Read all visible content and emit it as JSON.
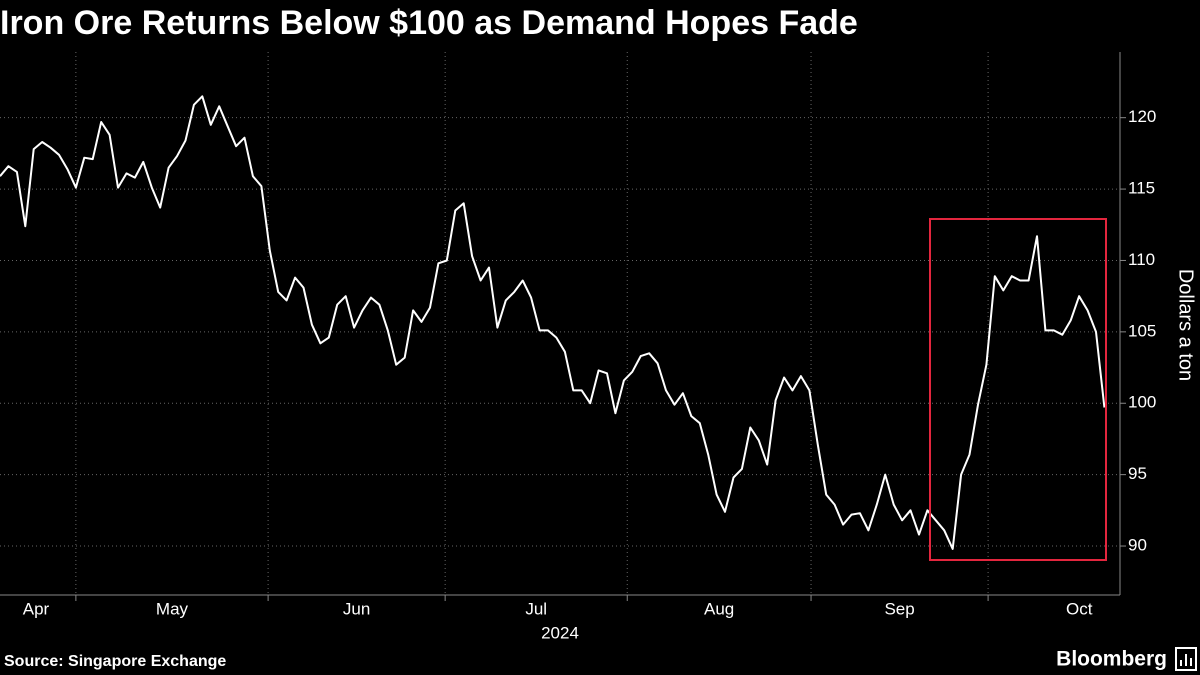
{
  "chart_data": {
    "type": "line",
    "title": "Iron Ore Returns Below $100 as Demand Hopes Fade",
    "y_label": "Dollars a ton",
    "x_sublabel": "2024",
    "source": "Source: Singapore Exchange",
    "brand": "Bloomberg",
    "series": [
      {
        "name": "Iron ore",
        "color": "#ffffff",
        "values": [
          115.9,
          116.6,
          116.2,
          112.4,
          117.8,
          118.3,
          117.9,
          117.4,
          116.4,
          115.1,
          117.2,
          117.1,
          119.7,
          118.8,
          115.1,
          116.1,
          115.8,
          116.9,
          115.1,
          113.7,
          116.5,
          117.3,
          118.4,
          120.9,
          121.5,
          119.5,
          120.8,
          119.4,
          118.0,
          118.6,
          115.9,
          115.2,
          110.7,
          107.8,
          107.2,
          108.8,
          108.1,
          105.5,
          104.2,
          104.6,
          106.9,
          107.5,
          105.3,
          106.5,
          107.4,
          106.9,
          105.1,
          102.7,
          103.2,
          106.5,
          105.7,
          106.7,
          109.8,
          110.0,
          113.5,
          114.0,
          110.3,
          108.6,
          109.5,
          105.3,
          107.2,
          107.8,
          108.6,
          107.4,
          105.1,
          105.1,
          104.6,
          103.6,
          100.9,
          100.9,
          100.0,
          102.3,
          102.1,
          99.3,
          101.6,
          102.2,
          103.3,
          103.5,
          102.8,
          100.9,
          99.9,
          100.7,
          99.1,
          98.6,
          96.4,
          93.6,
          92.4,
          94.8,
          95.4,
          98.3,
          97.4,
          95.7,
          100.2,
          101.8,
          100.9,
          101.9,
          100.9,
          97.1,
          93.6,
          92.9,
          91.5,
          92.2,
          92.3,
          91.1,
          92.9,
          95.0,
          92.9,
          91.8,
          92.5,
          90.8,
          92.5,
          91.8,
          91.1,
          89.8,
          95.0,
          96.4,
          99.9,
          102.7,
          108.9,
          107.9,
          108.9,
          108.6,
          108.6,
          111.7,
          105.1,
          105.1,
          104.8,
          105.8,
          107.5,
          106.5,
          105.0,
          99.7
        ]
      }
    ],
    "xlim": [
      0,
      130
    ],
    "xticks": [
      {
        "value": -12.6,
        "label": "Apr"
      },
      {
        "value": 9,
        "label": "May"
      },
      {
        "value": 31.8,
        "label": "Jun"
      },
      {
        "value": 52.8,
        "label": "Jul"
      },
      {
        "value": 74.4,
        "label": "Aug"
      },
      {
        "value": 96.2,
        "label": "Sep"
      },
      {
        "value": 117.2,
        "label": "Oct"
      }
    ],
    "ylim": [
      86.57,
      124.6
    ],
    "yticks": [
      90,
      95,
      100,
      105,
      110,
      115,
      120
    ],
    "grid": true
  }
}
